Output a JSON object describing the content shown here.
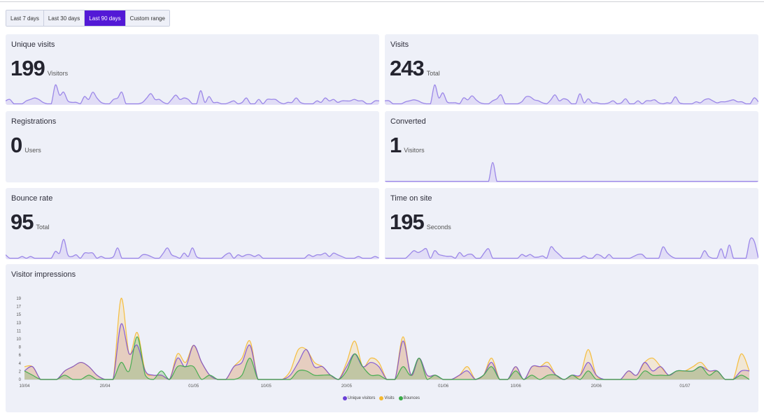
{
  "date_range": {
    "options": [
      "Last 7 days",
      "Last 30 days",
      "Last 90 days",
      "Custom range"
    ],
    "selected": "Last 90 days"
  },
  "colors": {
    "accent": "#5319d6",
    "card_bg": "#eef0f8",
    "spark_line": "#9b87e8",
    "spark_fill": "#ddd8f5",
    "unique": "#7a4fd6",
    "visits": "#f5b82e",
    "bounces": "#3aaa48"
  },
  "cards": [
    {
      "title": "Unique visits",
      "value": "199",
      "unit": "Visitors",
      "spark": [
        2,
        3,
        0,
        0,
        0,
        2,
        3,
        4,
        3,
        1,
        0,
        0,
        13,
        6,
        8,
        2,
        1,
        1,
        0,
        5,
        3,
        8,
        4,
        1,
        0,
        0,
        3,
        4,
        8,
        0,
        0,
        0,
        0,
        1,
        4,
        7,
        3,
        3,
        1,
        0,
        3,
        6,
        3,
        4,
        3,
        0,
        0,
        9,
        1,
        5,
        1,
        1,
        0,
        0,
        1,
        2,
        0,
        1,
        4,
        0,
        0,
        3,
        0,
        3,
        3,
        3,
        1,
        0,
        1,
        1,
        4,
        1,
        0,
        0,
        0,
        2,
        1,
        4,
        2,
        3,
        1,
        2,
        2,
        2,
        3,
        2,
        2,
        0,
        0,
        2,
        2
      ]
    },
    {
      "title": "Visits",
      "value": "243",
      "unit": "Total",
      "spark": [
        3,
        3,
        0,
        0,
        0,
        2,
        3,
        4,
        3,
        1,
        0,
        0,
        19,
        6,
        11,
        2,
        1,
        1,
        0,
        6,
        4,
        8,
        4,
        1,
        0,
        0,
        3,
        5,
        9,
        0,
        0,
        0,
        0,
        2,
        7,
        7,
        4,
        3,
        1,
        0,
        4,
        9,
        3,
        5,
        4,
        0,
        0,
        10,
        1,
        5,
        1,
        1,
        0,
        0,
        1,
        3,
        0,
        1,
        5,
        0,
        0,
        3,
        0,
        3,
        3,
        4,
        1,
        0,
        1,
        1,
        7,
        1,
        0,
        0,
        0,
        2,
        1,
        4,
        5,
        3,
        1,
        2,
        2,
        3,
        4,
        2,
        2,
        0,
        0,
        6,
        2
      ]
    },
    {
      "title": "Registrations",
      "value": "0",
      "unit": "Users",
      "spark": []
    },
    {
      "title": "Converted",
      "value": "1",
      "unit": "Visitors",
      "spark": [
        0,
        0,
        0,
        0,
        0,
        0,
        0,
        0,
        0,
        0,
        0,
        0,
        0,
        0,
        0,
        0,
        0,
        0,
        0,
        0,
        0,
        0,
        0,
        0,
        0,
        0,
        1,
        0,
        0,
        0,
        0,
        0,
        0,
        0,
        0,
        0,
        0,
        0,
        0,
        0,
        0,
        0,
        0,
        0,
        0,
        0,
        0,
        0,
        0,
        0,
        0,
        0,
        0,
        0,
        0,
        0,
        0,
        0,
        0,
        0,
        0,
        0,
        0,
        0,
        0,
        0,
        0,
        0,
        0,
        0,
        0,
        0,
        0,
        0,
        0,
        0,
        0,
        0,
        0,
        0,
        0,
        0,
        0,
        0,
        0,
        0,
        0,
        0,
        0,
        0,
        0
      ]
    },
    {
      "title": "Bounce rate",
      "value": "95",
      "unit": "Total",
      "spark": [
        1,
        0,
        0,
        0,
        0.5,
        0,
        0.5,
        0,
        0,
        0,
        0,
        0,
        2,
        1.5,
        5.5,
        1,
        0.5,
        1,
        0,
        1.5,
        1.5,
        1.5,
        0,
        0.5,
        0,
        0,
        0.5,
        3,
        0,
        0,
        0,
        0,
        0,
        1,
        1,
        0.5,
        0,
        0,
        1.5,
        3,
        1,
        0.5,
        0,
        1.5,
        0.5,
        3,
        0.5,
        0,
        0,
        0,
        0,
        0,
        0,
        1,
        1.5,
        0,
        1,
        0.5,
        1,
        1,
        0.5,
        1,
        0,
        0,
        0,
        0,
        0,
        0,
        0,
        0,
        0,
        0,
        0,
        1,
        0.5,
        1,
        1,
        1.5,
        0.5,
        1.5,
        1,
        0.5,
        0,
        0,
        0,
        0.5,
        0,
        0,
        0,
        0.5,
        0
      ]
    },
    {
      "title": "Time on site",
      "value": "195",
      "unit": "Seconds",
      "spark": [
        0,
        0,
        0,
        0,
        0,
        0,
        1,
        2,
        1.5,
        2,
        2.5,
        0,
        2,
        1,
        0.7,
        0.5,
        0.5,
        0,
        1.5,
        0.5,
        1,
        1,
        0,
        0,
        1.5,
        2.5,
        0,
        0,
        0,
        0,
        0,
        0,
        0,
        1,
        0.5,
        1,
        0.3,
        0.3,
        0.6,
        0,
        3,
        2,
        1,
        0,
        0,
        0,
        0,
        0,
        0.6,
        0,
        0,
        1,
        0.7,
        0,
        1,
        0,
        0,
        0,
        0,
        0,
        0.5,
        1,
        1,
        0,
        0,
        0,
        0,
        3,
        1.5,
        0.5,
        0,
        0,
        0,
        0,
        0,
        0,
        0,
        2,
        0.5,
        0,
        0,
        2.5,
        0,
        3.5,
        0,
        0,
        0,
        0,
        5,
        4.5,
        0
      ]
    }
  ],
  "impressions": {
    "title": "Visitor impressions",
    "chart_data": {
      "type": "area",
      "ylim": [
        0,
        19
      ],
      "y_ticks": [
        "0",
        "2",
        "4",
        "6",
        "8",
        "10",
        "11",
        "13",
        "15",
        "17",
        "19"
      ],
      "x_ticks": [
        "10/04",
        "20/04",
        "01/05",
        "10/05",
        "20/05",
        "01/06",
        "10/06",
        "20/06",
        "01/07"
      ],
      "legend": "bottom",
      "grid": false,
      "x": [
        "10/04",
        "11/04",
        "12/04",
        "13/04",
        "14/04",
        "15/04",
        "16/04",
        "17/04",
        "18/04",
        "19/04",
        "20/04",
        "21/04",
        "22/04",
        "23/04",
        "24/04",
        "25/04",
        "26/04",
        "27/04",
        "28/04",
        "29/04",
        "30/04",
        "01/05",
        "02/05",
        "03/05",
        "04/05",
        "05/05",
        "06/05",
        "07/05",
        "08/05",
        "09/05",
        "10/05",
        "11/05",
        "12/05",
        "13/05",
        "14/05",
        "15/05",
        "16/05",
        "17/05",
        "18/05",
        "19/05",
        "20/05",
        "21/05",
        "22/05",
        "23/05",
        "24/05",
        "25/05",
        "26/05",
        "27/05",
        "28/05",
        "29/05",
        "30/05",
        "31/05",
        "01/06",
        "02/06",
        "03/06",
        "04/06",
        "05/06",
        "06/06",
        "07/06",
        "08/06",
        "09/06",
        "10/06",
        "11/06",
        "12/06",
        "13/06",
        "14/06",
        "15/06",
        "16/06",
        "17/06",
        "18/06",
        "19/06",
        "20/06",
        "21/06",
        "22/06",
        "23/06",
        "24/06",
        "25/06",
        "26/06",
        "27/06",
        "28/06",
        "29/06",
        "30/06",
        "01/07",
        "02/07",
        "03/07",
        "04/07",
        "05/07",
        "06/07",
        "07/07",
        "08/07",
        "09/07"
      ],
      "series": [
        {
          "name": "Visits",
          "color": "#f5b82e",
          "values": [
            3,
            3,
            0,
            0,
            0,
            2,
            3,
            4,
            3,
            1,
            0,
            0,
            19,
            6,
            11,
            2,
            1,
            1,
            0,
            6,
            4,
            8,
            4,
            1,
            0,
            0,
            3,
            5,
            9,
            0,
            0,
            0,
            0,
            2,
            7,
            7,
            4,
            3,
            1,
            0,
            4,
            9,
            3,
            5,
            4,
            0,
            0,
            10,
            1,
            5,
            1,
            1,
            0,
            0,
            1,
            3,
            0,
            1,
            5,
            0,
            0,
            3,
            0,
            3,
            3,
            4,
            1,
            0,
            1,
            1,
            7,
            1,
            0,
            0,
            0,
            2,
            1,
            4,
            5,
            3,
            1,
            2,
            2,
            3,
            4,
            2,
            2,
            0,
            0,
            6,
            2
          ]
        },
        {
          "name": "Unique visitors",
          "color": "#7a4fd6",
          "values": [
            2,
            3,
            0,
            0,
            0,
            2,
            3,
            4,
            3,
            1,
            0,
            0,
            13,
            6,
            8,
            2,
            1,
            1,
            0,
            5,
            3,
            8,
            4,
            1,
            0,
            0,
            3,
            4,
            8,
            0,
            0,
            0,
            0,
            1,
            4,
            7,
            3,
            3,
            1,
            0,
            3,
            6,
            3,
            4,
            3,
            0,
            0,
            9,
            1,
            5,
            1,
            1,
            0,
            0,
            1,
            2,
            0,
            1,
            4,
            0,
            0,
            3,
            0,
            3,
            3,
            3,
            1,
            0,
            1,
            1,
            4,
            1,
            0,
            0,
            0,
            2,
            1,
            4,
            2,
            3,
            1,
            2,
            2,
            2,
            3,
            2,
            2,
            0,
            0,
            2,
            2
          ]
        },
        {
          "name": "Bounces",
          "color": "#3aaa48",
          "values": [
            2,
            1,
            0,
            0,
            0,
            1,
            0,
            0,
            1,
            0,
            0,
            0,
            4,
            2,
            10,
            1,
            0,
            2,
            0,
            3,
            3,
            3,
            0,
            1,
            0,
            0,
            0,
            1,
            5,
            0,
            0,
            0,
            0,
            0,
            2,
            2,
            1,
            1,
            1,
            0,
            2,
            6,
            3,
            1,
            1,
            0,
            0,
            3,
            1,
            5,
            0,
            1,
            0,
            0,
            0,
            0,
            0,
            1,
            3,
            0,
            0,
            2,
            0,
            1,
            0,
            1,
            1,
            0,
            1,
            0,
            2,
            0,
            0,
            0,
            0,
            0,
            0,
            2,
            1,
            1,
            1,
            2,
            2,
            2,
            3,
            1,
            2,
            0,
            0,
            1,
            0
          ]
        }
      ]
    },
    "legend": [
      "Unique visitors",
      "Visits",
      "Bounces"
    ]
  }
}
